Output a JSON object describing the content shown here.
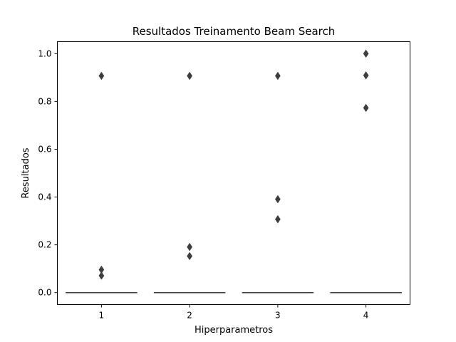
{
  "chart_data": {
    "type": "box",
    "title": "Resultados Treinamento Beam Search",
    "xlabel": "Hiperparametros",
    "ylabel": "Resultados",
    "ylim": [
      -0.05,
      1.05
    ],
    "yticks": [
      0.0,
      0.2,
      0.4,
      0.6,
      0.8,
      1.0
    ],
    "ytick_labels": [
      "0.0",
      "0.2",
      "0.4",
      "0.6",
      "0.8",
      "1.0"
    ],
    "categories": [
      "1",
      "2",
      "3",
      "4"
    ],
    "grid": false,
    "colors": {
      "box": "#3d3d3d",
      "outlier": "#3d3d3d"
    },
    "boxes": [
      {
        "category": "1",
        "q1": 0.0,
        "median": 0.0,
        "q3": 0.0,
        "whisker_low": 0.0,
        "whisker_high": 0.0,
        "outliers": [
          0.907,
          0.096,
          0.071
        ]
      },
      {
        "category": "2",
        "q1": 0.0,
        "median": 0.0,
        "q3": 0.0,
        "whisker_low": 0.0,
        "whisker_high": 0.0,
        "outliers": [
          0.907,
          0.191,
          0.153
        ]
      },
      {
        "category": "3",
        "q1": 0.0,
        "median": 0.0,
        "q3": 0.0,
        "whisker_low": 0.0,
        "whisker_high": 0.0,
        "outliers": [
          0.907,
          0.391,
          0.307
        ]
      },
      {
        "category": "4",
        "q1": 0.0,
        "median": 0.0,
        "q3": 0.0,
        "whisker_low": 0.0,
        "whisker_high": 0.0,
        "outliers": [
          1.0,
          0.909,
          0.773
        ]
      }
    ]
  }
}
